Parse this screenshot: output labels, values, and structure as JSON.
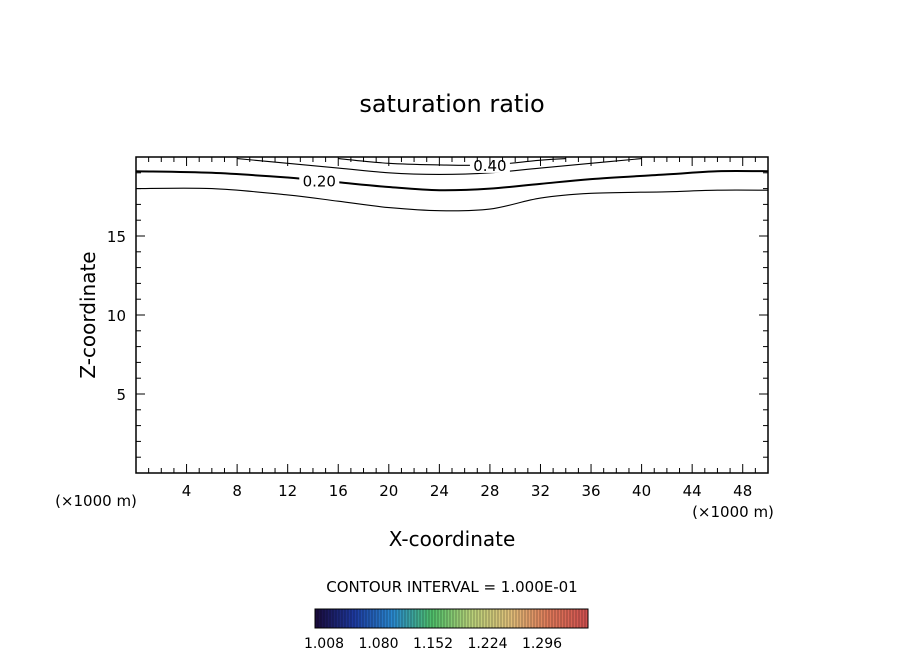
{
  "chart_data": {
    "type": "contour",
    "title": "saturation ratio",
    "xlabel": "X-coordinate",
    "ylabel": "Z-coordinate",
    "x_unit": "(×1000 m)",
    "xlim": [
      0,
      50
    ],
    "ylim": [
      0,
      20
    ],
    "x_ticks": [
      4,
      8,
      12,
      16,
      20,
      24,
      28,
      32,
      36,
      40,
      44,
      48
    ],
    "y_ticks": [
      5,
      10,
      15
    ],
    "contour_interval_label": "CONTOUR INTERVAL = 1.000E-01",
    "contours": [
      {
        "level": "0.10",
        "labeled": false,
        "points": [
          [
            0,
            18.0
          ],
          [
            6,
            18.0
          ],
          [
            12,
            17.6
          ],
          [
            16,
            17.2
          ],
          [
            20,
            16.8
          ],
          [
            24,
            16.6
          ],
          [
            28,
            16.7
          ],
          [
            32,
            17.4
          ],
          [
            36,
            17.7
          ],
          [
            42,
            17.8
          ],
          [
            46,
            17.9
          ],
          [
            50,
            17.9
          ]
        ]
      },
      {
        "level": "0.20",
        "labeled": true,
        "label_x": 14.5,
        "points": [
          [
            0,
            19.1
          ],
          [
            6,
            19.0
          ],
          [
            12,
            18.7
          ],
          [
            16,
            18.4
          ],
          [
            20,
            18.1
          ],
          [
            24,
            17.9
          ],
          [
            28,
            18.0
          ],
          [
            32,
            18.3
          ],
          [
            36,
            18.6
          ],
          [
            42,
            18.9
          ],
          [
            46,
            19.1
          ],
          [
            50,
            19.1
          ]
        ]
      },
      {
        "level": "0.30",
        "labeled": false,
        "points": [
          [
            8,
            19.9
          ],
          [
            12,
            19.6
          ],
          [
            16,
            19.3
          ],
          [
            20,
            19.0
          ],
          [
            24,
            18.9
          ],
          [
            28,
            19.0
          ],
          [
            32,
            19.3
          ],
          [
            36,
            19.6
          ],
          [
            40,
            19.9
          ]
        ]
      },
      {
        "level": "0.40",
        "labeled": true,
        "label_x": 28,
        "points": [
          [
            16,
            19.9
          ],
          [
            20,
            19.6
          ],
          [
            24,
            19.5
          ],
          [
            28,
            19.5
          ],
          [
            32,
            19.8
          ],
          [
            34,
            19.9
          ]
        ]
      }
    ],
    "colorbar": {
      "colors": [
        "#1a0a3a",
        "#1e3aa0",
        "#2a8ad0",
        "#4fbf6a",
        "#b8d27a",
        "#e0c07a",
        "#e07a5a",
        "#d05050"
      ],
      "tick_labels": [
        "1.008",
        "1.080",
        "1.152",
        "1.224",
        "1.296"
      ]
    }
  }
}
